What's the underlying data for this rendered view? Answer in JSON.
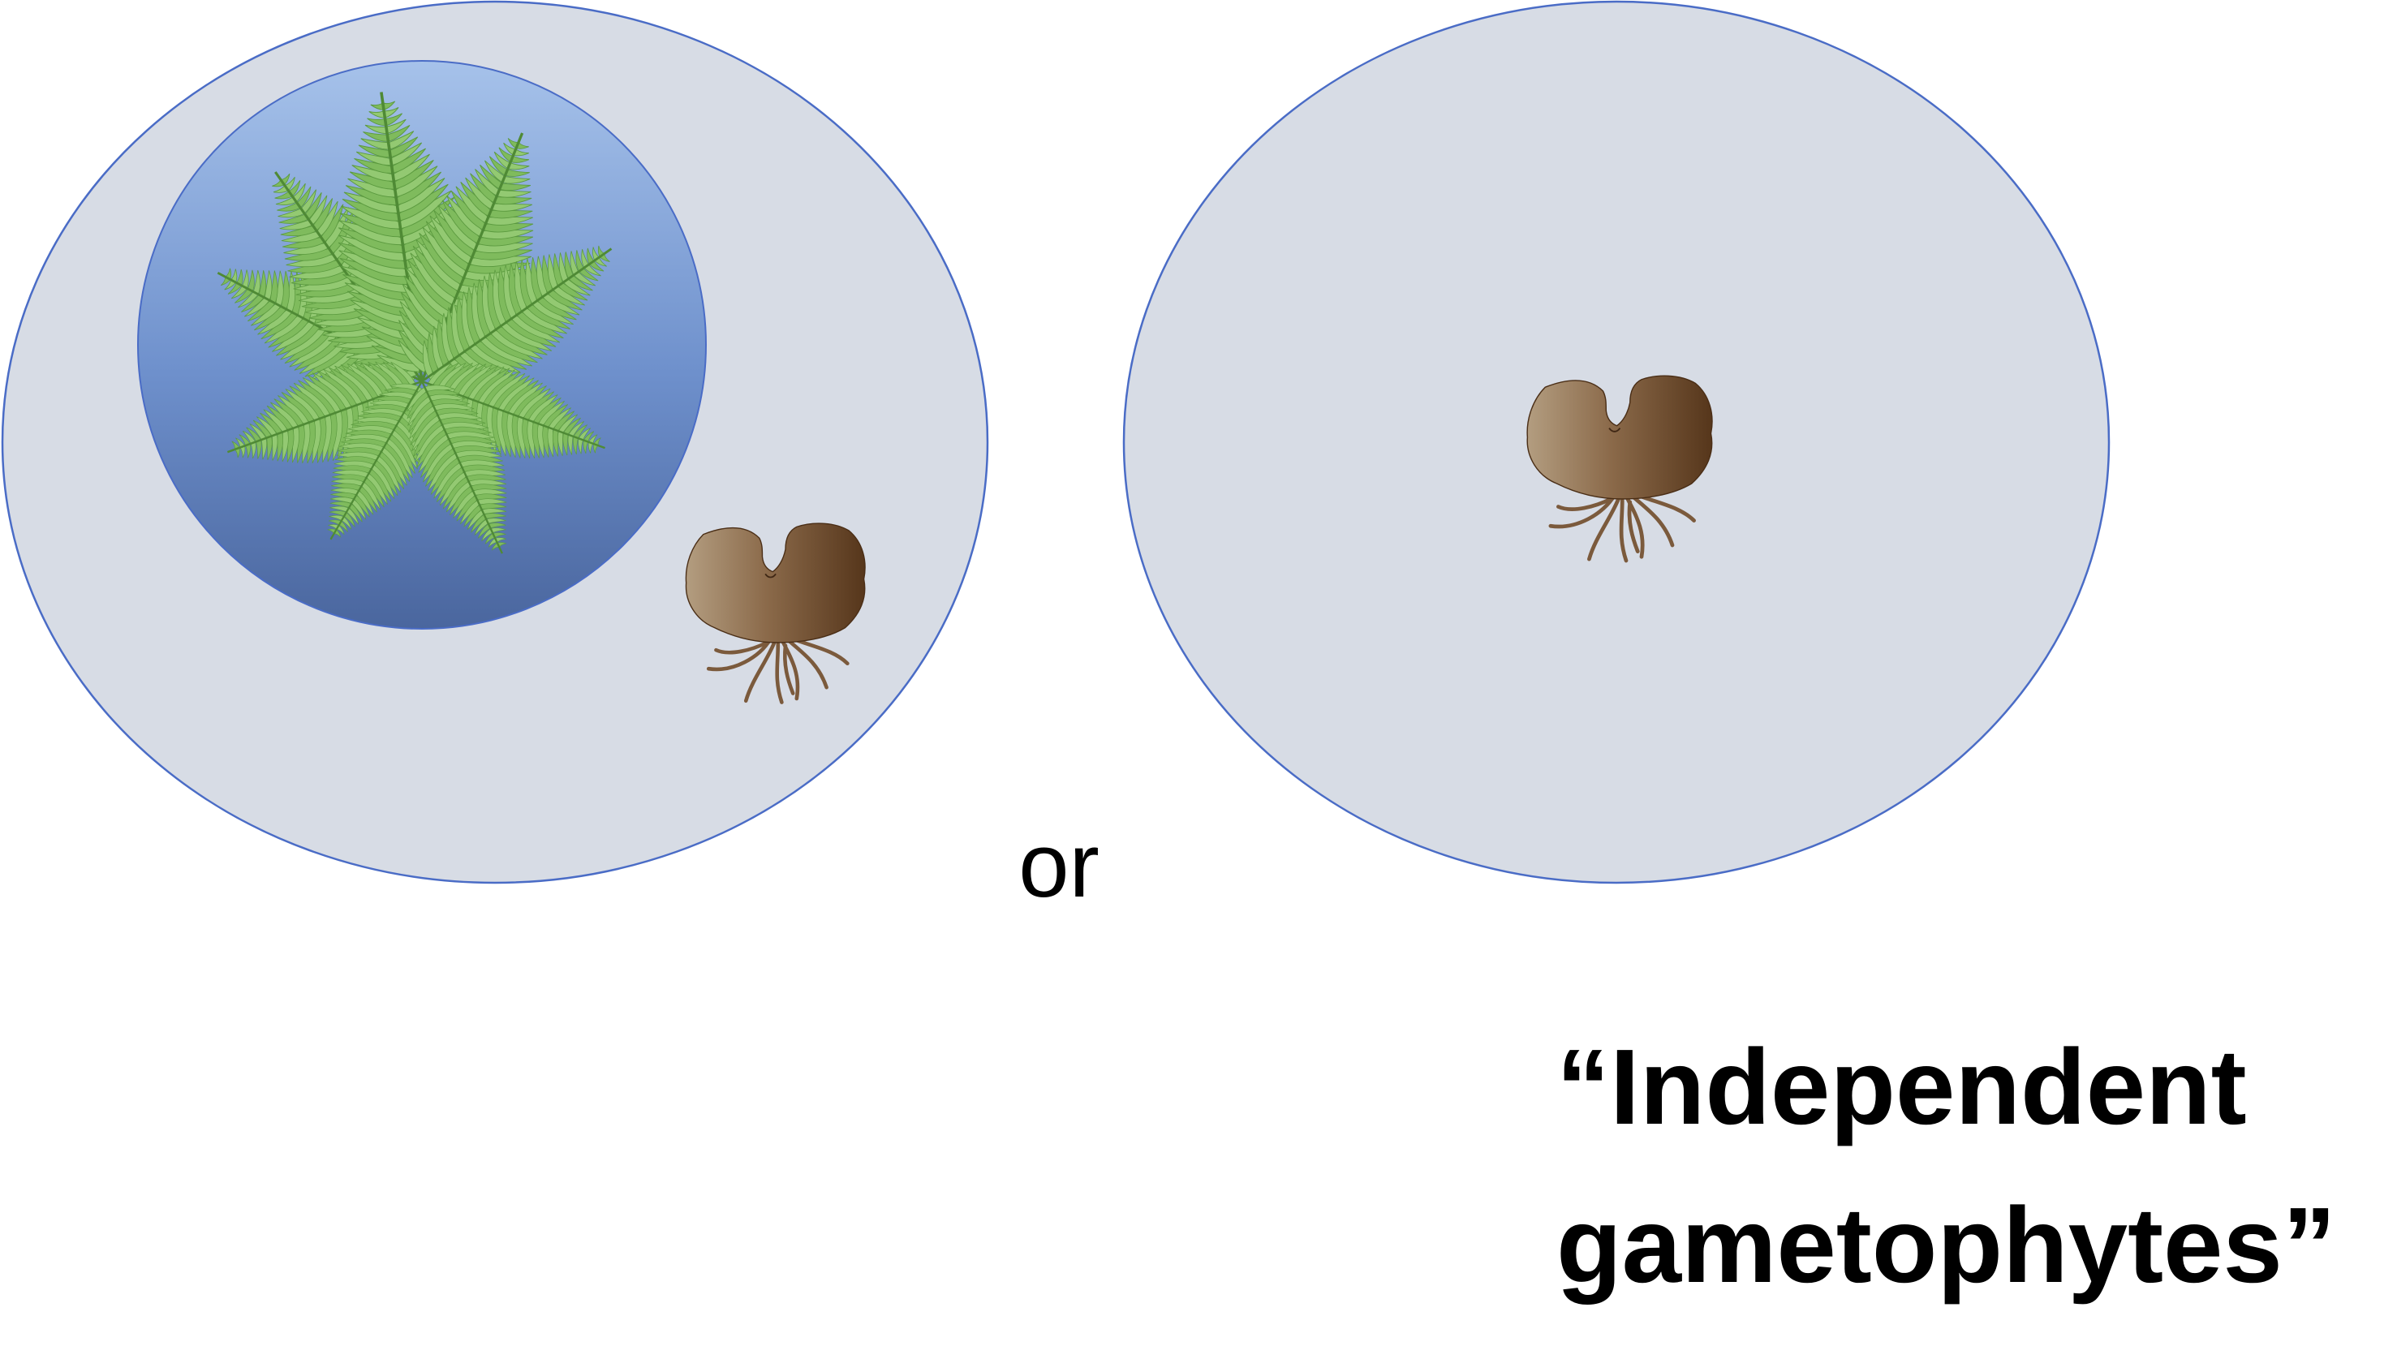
{
  "labels": {
    "or": "or",
    "caption_line1": "“Independent",
    "caption_line2": "gametophytes”"
  },
  "colors": {
    "ellipse_fill": "#d7dce5",
    "ellipse_stroke": "#4a6cc6",
    "circle_top": "#a4c0e8",
    "circle_bottom": "#4a68a2",
    "fern_light": "#9fd07a",
    "fern_dark": "#5a9a3e",
    "gametophyte_light": "#b29a7c",
    "gametophyte_dark": "#5b3a1e",
    "rhizoid": "#7b5a3c"
  },
  "icons": [
    "fern-sporophyte-icon",
    "gametophyte-icon"
  ]
}
